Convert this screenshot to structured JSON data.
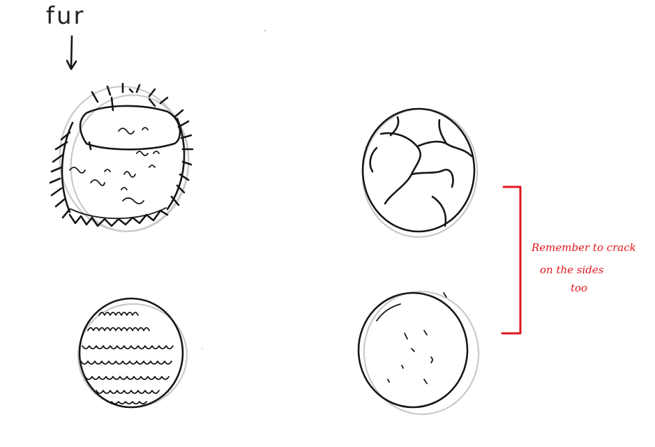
{
  "labels": {
    "fur": "fur",
    "note_line1": "Remember to crack",
    "note_line2": "on the sides",
    "note_line3": "too"
  },
  "colors": {
    "background": "#ffffff",
    "ink": "#161616",
    "guide": "#c9c9c9",
    "annotation": "#e0161d"
  },
  "icons": {
    "arrow": "down-arrow-icon",
    "bracket": "right-bracket-icon"
  },
  "sketches": [
    {
      "id": "furry-ball",
      "description_label": ""
    },
    {
      "id": "cracked-ball",
      "description_label": ""
    },
    {
      "id": "scaly-ball",
      "description_label": ""
    },
    {
      "id": "dotted-ball",
      "description_label": ""
    }
  ]
}
